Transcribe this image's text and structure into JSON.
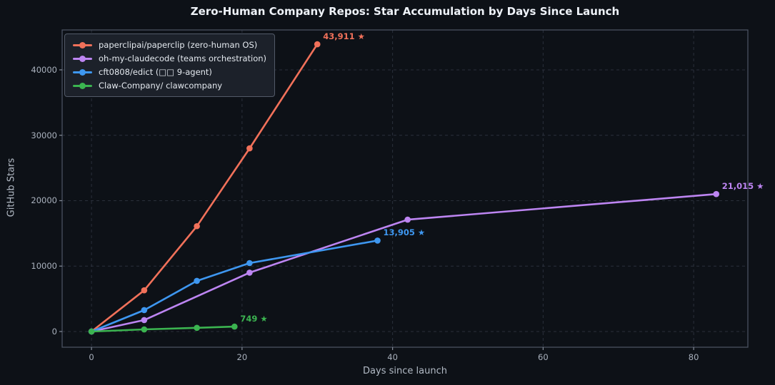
{
  "chart_data": {
    "type": "line",
    "title": "Zero-Human Company Repos: Star Accumulation by Days Since Launch",
    "xlabel": "Days since launch",
    "ylabel": "GitHub Stars",
    "xlim": [
      -3.9,
      87.2
    ],
    "ylim": [
      -2400,
      46100
    ],
    "x_ticks": [
      0,
      20,
      40,
      60,
      80
    ],
    "y_ticks": [
      0,
      10000,
      20000,
      30000,
      40000
    ],
    "grid": true,
    "grid_style": "dashed",
    "legend_position": "upper-left",
    "series": [
      {
        "name": "paperclipai/paperclip (zero-human OS)",
        "color": "#f1715a",
        "x": [
          0,
          7,
          14,
          21,
          30
        ],
        "values": [
          0,
          6300,
          16100,
          28000,
          43911
        ],
        "final_label": "43,911 ★"
      },
      {
        "name": "oh-my-claudecode (teams orchestration)",
        "color": "#bd85f2",
        "x": [
          0,
          7,
          21,
          42,
          83
        ],
        "values": [
          0,
          1750,
          9000,
          17100,
          21015
        ],
        "final_label": "21,015 ★"
      },
      {
        "name": "cft0808/edict (□□ 9-agent)",
        "color": "#3e97f0",
        "x": [
          0,
          7,
          14,
          21,
          38
        ],
        "values": [
          0,
          3270,
          7740,
          10460,
          13905
        ],
        "final_label": "13,905 ★"
      },
      {
        "name": "Claw-Company/ clawcompany",
        "color": "#3bb450",
        "x": [
          0,
          7,
          14,
          19
        ],
        "values": [
          0,
          320,
          560,
          749
        ],
        "final_label": "749 ★"
      }
    ],
    "colors": {
      "background": "#0d1117",
      "grid": "#424959",
      "spine": "#4a5260",
      "title": "#eef2f8",
      "tick_label": "#a9b1bd",
      "axis_label": "#b3bbc6",
      "legend_bg": "#1c212a",
      "legend_border": "#525a68",
      "legend_text": "#e4e9ef"
    }
  }
}
